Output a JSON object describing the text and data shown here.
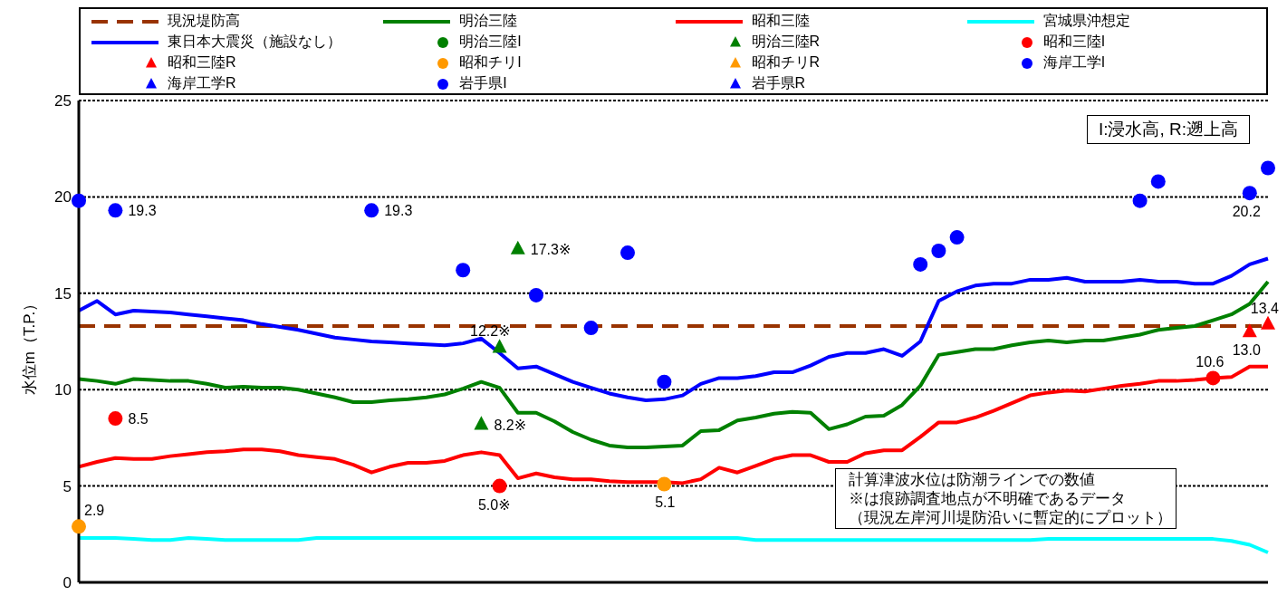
{
  "chart_data": {
    "type": "line",
    "ylabel": "水位m（T.P.）",
    "categories": [
      null,
      null,
      null,
      null,
      null,
      null,
      null,
      null,
      null,
      null,
      null,
      null,
      null,
      null,
      null,
      null,
      null,
      null,
      null,
      null,
      null,
      null,
      null,
      null,
      null,
      null,
      null,
      null,
      null,
      null,
      null,
      null,
      null,
      null,
      null,
      null,
      null,
      null,
      null,
      null,
      null,
      null,
      null,
      null,
      null,
      null,
      null,
      null,
      null,
      null,
      null,
      null,
      null,
      null,
      null,
      null,
      null,
      null,
      null,
      null,
      null,
      null,
      null,
      null,
      null,
      null
    ],
    "ylim": [
      0,
      25
    ],
    "yticks": [
      0,
      5,
      10,
      15,
      20,
      25
    ],
    "grid": "y",
    "legend": "top",
    "tick_labels": "y",
    "ref_lines": [
      {
        "axis": "y",
        "value": 13.3,
        "label": "現況堤防高",
        "color": "#993300",
        "line_style": "dashed"
      }
    ],
    "annotations": [
      "I:浸水高, R:遡上高",
      "計算津波水位は防潮ラインでの数値",
      "※は痕跡調査地点が不明確であるデータ",
      "（現況左岸河川堤防沿いに暫定的にプロット）"
    ],
    "series": [
      {
        "name": "明治三陸",
        "color": "#008000",
        "values": [
          10.55,
          10.45,
          10.3,
          10.55,
          10.5,
          10.45,
          10.45,
          10.3,
          10.1,
          10.15,
          10.1,
          10.1,
          10.0,
          9.8,
          9.6,
          9.35,
          9.35,
          9.45,
          9.5,
          9.6,
          9.75,
          10.05,
          10.4,
          10.1,
          8.8,
          8.8,
          8.35,
          7.8,
          7.4,
          7.1,
          7.0,
          7.0,
          7.05,
          7.1,
          7.85,
          7.9,
          8.4,
          8.55,
          8.75,
          8.85,
          8.8,
          7.95,
          8.2,
          8.6,
          8.65,
          9.2,
          10.2,
          11.8,
          11.95,
          12.1,
          12.1,
          12.3,
          12.45,
          12.55,
          12.45,
          12.55,
          12.55,
          12.7,
          12.85,
          13.1,
          13.2,
          13.3,
          13.6,
          13.9,
          14.45,
          15.6
        ]
      },
      {
        "name": "昭和三陸",
        "color": "#ff0000",
        "values": [
          6.0,
          6.25,
          6.45,
          6.4,
          6.4,
          6.55,
          6.65,
          6.75,
          6.8,
          6.9,
          6.9,
          6.8,
          6.6,
          6.5,
          6.4,
          6.1,
          5.7,
          6.0,
          6.2,
          6.2,
          6.3,
          6.6,
          6.75,
          6.6,
          5.4,
          5.65,
          5.45,
          5.35,
          5.35,
          5.25,
          5.2,
          5.2,
          5.2,
          5.15,
          5.35,
          5.95,
          5.7,
          6.05,
          6.4,
          6.6,
          6.6,
          6.25,
          6.25,
          6.7,
          6.85,
          6.85,
          7.55,
          8.3,
          8.3,
          8.55,
          8.9,
          9.3,
          9.7,
          9.85,
          9.95,
          9.9,
          10.05,
          10.2,
          10.3,
          10.45,
          10.45,
          10.5,
          10.6,
          10.65,
          11.2,
          11.2
        ]
      },
      {
        "name": "宮城県沖想定",
        "color": "#00ffff",
        "values": [
          2.3,
          2.3,
          2.3,
          2.25,
          2.2,
          2.2,
          2.3,
          2.25,
          2.2,
          2.2,
          2.2,
          2.2,
          2.2,
          2.3,
          2.3,
          2.3,
          2.3,
          2.3,
          2.3,
          2.3,
          2.3,
          2.3,
          2.3,
          2.3,
          2.3,
          2.3,
          2.3,
          2.3,
          2.3,
          2.3,
          2.3,
          2.3,
          2.3,
          2.3,
          2.3,
          2.3,
          2.3,
          2.2,
          2.2,
          2.2,
          2.2,
          2.2,
          2.2,
          2.2,
          2.2,
          2.2,
          2.2,
          2.2,
          2.2,
          2.2,
          2.2,
          2.2,
          2.2,
          2.25,
          2.25,
          2.25,
          2.25,
          2.25,
          2.25,
          2.25,
          2.25,
          2.25,
          2.25,
          2.15,
          1.95,
          1.55
        ]
      },
      {
        "name": "東日本大震災（施設なし）",
        "color": "#0000ff",
        "values": [
          14.1,
          14.6,
          13.9,
          14.1,
          14.05,
          14.0,
          13.9,
          13.8,
          13.7,
          13.6,
          13.4,
          13.25,
          13.1,
          12.9,
          12.7,
          12.6,
          12.5,
          12.45,
          12.4,
          12.35,
          12.3,
          12.4,
          12.65,
          11.9,
          11.1,
          11.2,
          10.8,
          10.4,
          10.1,
          9.8,
          9.6,
          9.45,
          9.5,
          9.7,
          10.3,
          10.6,
          10.6,
          10.7,
          10.9,
          10.9,
          11.25,
          11.7,
          11.9,
          11.9,
          12.1,
          11.75,
          12.5,
          14.6,
          15.1,
          15.4,
          15.5,
          15.5,
          15.7,
          15.7,
          15.8,
          15.6,
          15.6,
          15.6,
          15.7,
          15.6,
          15.6,
          15.5,
          15.5,
          15.9,
          16.5,
          16.8
        ]
      },
      {
        "name": "明治三陸I",
        "type": "scatter",
        "marker": "circle",
        "color": "#008000",
        "values": [
          null,
          null,
          null,
          null,
          null,
          null,
          null,
          null,
          null,
          null,
          null,
          null,
          null,
          null,
          null,
          null,
          null,
          null,
          null,
          null,
          null,
          null,
          null,
          null,
          null,
          null,
          null,
          null,
          null,
          null,
          null,
          null,
          null,
          null,
          null,
          null,
          null,
          null,
          null,
          null,
          null,
          null,
          null,
          null,
          null,
          null,
          null,
          null,
          null,
          null,
          null,
          null,
          null,
          null,
          null,
          null,
          null,
          null,
          null,
          null,
          null,
          null,
          null,
          null,
          null,
          null
        ]
      },
      {
        "name": "明治三陸R",
        "type": "scatter",
        "marker": "triangle",
        "color": "#008000",
        "values": [
          null,
          null,
          null,
          null,
          null,
          null,
          null,
          null,
          null,
          null,
          null,
          null,
          null,
          null,
          null,
          null,
          null,
          null,
          null,
          null,
          null,
          null,
          8.2,
          12.2,
          17.3,
          null,
          null,
          null,
          null,
          null,
          null,
          null,
          null,
          null,
          null,
          null,
          null,
          null,
          null,
          null,
          null,
          null,
          null,
          null,
          null,
          null,
          null,
          null,
          null,
          null,
          null,
          null,
          null,
          null,
          null,
          null,
          null,
          null,
          null,
          null,
          null,
          null,
          null,
          null,
          null,
          null
        ],
        "value_labels": [
          null,
          null,
          null,
          null,
          null,
          null,
          null,
          null,
          null,
          null,
          null,
          null,
          null,
          null,
          null,
          null,
          null,
          null,
          null,
          null,
          null,
          null,
          "8.2※",
          "12.2※",
          "17.3※",
          null,
          null,
          null,
          null,
          null,
          null,
          null,
          null,
          null,
          null,
          null,
          null,
          null,
          null,
          null,
          null,
          null,
          null,
          null,
          null,
          null,
          null,
          null,
          null,
          null,
          null,
          null,
          null,
          null,
          null,
          null,
          null,
          null,
          null,
          null,
          null,
          null,
          null,
          null,
          null,
          null
        ]
      },
      {
        "name": "昭和三陸I",
        "type": "scatter",
        "marker": "circle",
        "color": "#ff0000",
        "values": [
          null,
          null,
          8.5,
          null,
          null,
          null,
          null,
          null,
          null,
          null,
          null,
          null,
          null,
          null,
          null,
          null,
          null,
          null,
          null,
          null,
          null,
          null,
          null,
          5.0,
          null,
          null,
          null,
          null,
          null,
          null,
          null,
          null,
          null,
          null,
          null,
          null,
          null,
          null,
          null,
          null,
          null,
          null,
          null,
          null,
          null,
          null,
          null,
          null,
          null,
          null,
          null,
          null,
          null,
          null,
          null,
          null,
          null,
          null,
          null,
          null,
          null,
          null,
          10.6,
          null,
          null,
          null
        ],
        "value_labels": [
          null,
          null,
          "8.5",
          null,
          null,
          null,
          null,
          null,
          null,
          null,
          null,
          null,
          null,
          null,
          null,
          null,
          null,
          null,
          null,
          null,
          null,
          null,
          null,
          "5.0※",
          null,
          null,
          null,
          null,
          null,
          null,
          null,
          null,
          null,
          null,
          null,
          null,
          null,
          null,
          null,
          null,
          null,
          null,
          null,
          null,
          null,
          null,
          null,
          null,
          null,
          null,
          null,
          null,
          null,
          null,
          null,
          null,
          null,
          null,
          null,
          null,
          null,
          null,
          "10.6",
          null,
          null,
          null
        ]
      },
      {
        "name": "昭和三陸R",
        "type": "scatter",
        "marker": "triangle",
        "color": "#ff0000",
        "values": [
          null,
          null,
          null,
          null,
          null,
          null,
          null,
          null,
          null,
          null,
          null,
          null,
          null,
          null,
          null,
          null,
          null,
          null,
          null,
          null,
          null,
          null,
          null,
          null,
          null,
          null,
          null,
          null,
          null,
          null,
          null,
          null,
          null,
          null,
          null,
          null,
          null,
          null,
          null,
          null,
          null,
          null,
          null,
          null,
          null,
          null,
          null,
          null,
          null,
          null,
          null,
          null,
          null,
          null,
          null,
          null,
          null,
          null,
          null,
          null,
          null,
          null,
          null,
          null,
          13.0,
          13.4
        ],
        "value_labels": [
          null,
          null,
          null,
          null,
          null,
          null,
          null,
          null,
          null,
          null,
          null,
          null,
          null,
          null,
          null,
          null,
          null,
          null,
          null,
          null,
          null,
          null,
          null,
          null,
          null,
          null,
          null,
          null,
          null,
          null,
          null,
          null,
          null,
          null,
          null,
          null,
          null,
          null,
          null,
          null,
          null,
          null,
          null,
          null,
          null,
          null,
          null,
          null,
          null,
          null,
          null,
          null,
          null,
          null,
          null,
          null,
          null,
          null,
          null,
          null,
          null,
          null,
          null,
          null,
          "13.0",
          "13.4"
        ]
      },
      {
        "name": "昭和チリI",
        "type": "scatter",
        "marker": "circle",
        "color": "#ff9900",
        "values": [
          2.9,
          null,
          null,
          null,
          null,
          null,
          null,
          null,
          null,
          null,
          null,
          null,
          null,
          null,
          null,
          null,
          null,
          null,
          null,
          null,
          null,
          null,
          null,
          null,
          null,
          null,
          null,
          null,
          null,
          null,
          null,
          null,
          5.1,
          null,
          null,
          null,
          null,
          null,
          null,
          null,
          null,
          null,
          null,
          null,
          null,
          null,
          null,
          null,
          null,
          null,
          null,
          null,
          null,
          null,
          null,
          null,
          null,
          null,
          null,
          null,
          null,
          null,
          null,
          null,
          null,
          null
        ],
        "value_labels": [
          "2.9",
          null,
          null,
          null,
          null,
          null,
          null,
          null,
          null,
          null,
          null,
          null,
          null,
          null,
          null,
          null,
          null,
          null,
          null,
          null,
          null,
          null,
          null,
          null,
          null,
          null,
          null,
          null,
          null,
          null,
          null,
          null,
          "5.1",
          null,
          null,
          null,
          null,
          null,
          null,
          null,
          null,
          null,
          null,
          null,
          null,
          null,
          null,
          null,
          null,
          null,
          null,
          null,
          null,
          null,
          null,
          null,
          null,
          null,
          null,
          null,
          null,
          null,
          null,
          null,
          null,
          null
        ]
      },
      {
        "name": "昭和チリR",
        "type": "scatter",
        "marker": "triangle",
        "color": "#ff9900",
        "values": [
          null,
          null,
          null,
          null,
          null,
          null,
          null,
          null,
          null,
          null,
          null,
          null,
          null,
          null,
          null,
          null,
          null,
          null,
          null,
          null,
          null,
          null,
          null,
          null,
          null,
          null,
          null,
          null,
          null,
          null,
          null,
          null,
          null,
          null,
          null,
          null,
          null,
          null,
          null,
          null,
          null,
          null,
          null,
          null,
          null,
          null,
          null,
          null,
          null,
          null,
          null,
          null,
          null,
          null,
          null,
          null,
          null,
          null,
          null,
          null,
          null,
          null,
          null,
          null,
          null,
          null
        ]
      },
      {
        "name": "海岸工学I",
        "type": "scatter",
        "marker": "circle",
        "color": "#0000ff",
        "values": [
          null,
          null,
          null,
          null,
          null,
          null,
          null,
          null,
          null,
          null,
          null,
          null,
          null,
          null,
          null,
          null,
          null,
          null,
          null,
          null,
          null,
          null,
          null,
          null,
          null,
          null,
          null,
          null,
          null,
          null,
          null,
          null,
          null,
          null,
          null,
          null,
          null,
          null,
          null,
          null,
          null,
          null,
          null,
          null,
          null,
          null,
          null,
          null,
          null,
          null,
          null,
          null,
          null,
          null,
          null,
          null,
          null,
          null,
          null,
          null,
          null,
          null,
          null,
          null,
          null,
          null
        ]
      },
      {
        "name": "海岸工学R",
        "type": "scatter",
        "marker": "triangle",
        "color": "#0000ff",
        "values": [
          null,
          null,
          null,
          null,
          null,
          null,
          null,
          null,
          null,
          null,
          null,
          null,
          null,
          null,
          null,
          null,
          null,
          null,
          null,
          null,
          null,
          null,
          null,
          null,
          null,
          null,
          null,
          null,
          null,
          null,
          null,
          null,
          null,
          null,
          null,
          null,
          null,
          null,
          null,
          null,
          null,
          null,
          null,
          null,
          null,
          null,
          null,
          null,
          null,
          null,
          null,
          null,
          null,
          null,
          null,
          null,
          null,
          null,
          null,
          null,
          null,
          null,
          null,
          null,
          null,
          null
        ]
      },
      {
        "name": "岩手県I",
        "type": "scatter",
        "marker": "circle",
        "color": "#0000ff",
        "values": [
          19.8,
          null,
          19.3,
          null,
          null,
          null,
          null,
          null,
          null,
          null,
          null,
          null,
          null,
          null,
          null,
          null,
          19.3,
          null,
          null,
          null,
          null,
          16.2,
          null,
          null,
          null,
          14.9,
          null,
          null,
          13.2,
          null,
          17.1,
          null,
          10.4,
          null,
          null,
          null,
          null,
          null,
          null,
          null,
          null,
          null,
          null,
          null,
          null,
          null,
          16.5,
          17.2,
          17.9,
          null,
          null,
          null,
          null,
          null,
          null,
          null,
          null,
          null,
          19.8,
          20.8,
          null,
          null,
          null,
          null,
          20.2,
          21.5
        ],
        "value_labels": [
          null,
          null,
          "19.3",
          null,
          null,
          null,
          null,
          null,
          null,
          null,
          null,
          null,
          null,
          null,
          null,
          null,
          "19.3",
          null,
          null,
          null,
          null,
          null,
          null,
          null,
          null,
          null,
          null,
          null,
          null,
          null,
          null,
          null,
          null,
          null,
          null,
          null,
          null,
          null,
          null,
          null,
          null,
          null,
          null,
          null,
          null,
          null,
          null,
          null,
          null,
          null,
          null,
          null,
          null,
          null,
          null,
          null,
          null,
          null,
          null,
          null,
          null,
          null,
          null,
          null,
          "20.2",
          null
        ]
      },
      {
        "name": "岩手県R",
        "type": "scatter",
        "marker": "triangle",
        "color": "#0000ff",
        "values": [
          null,
          null,
          null,
          null,
          null,
          null,
          null,
          null,
          null,
          null,
          null,
          null,
          null,
          null,
          null,
          null,
          null,
          null,
          null,
          null,
          null,
          null,
          null,
          null,
          null,
          null,
          null,
          null,
          null,
          null,
          null,
          null,
          null,
          null,
          null,
          null,
          null,
          null,
          null,
          null,
          null,
          null,
          null,
          null,
          null,
          null,
          null,
          null,
          null,
          null,
          null,
          null,
          null,
          null,
          null,
          null,
          null,
          null,
          null,
          null,
          null,
          null,
          null,
          null,
          null,
          null
        ]
      }
    ]
  }
}
